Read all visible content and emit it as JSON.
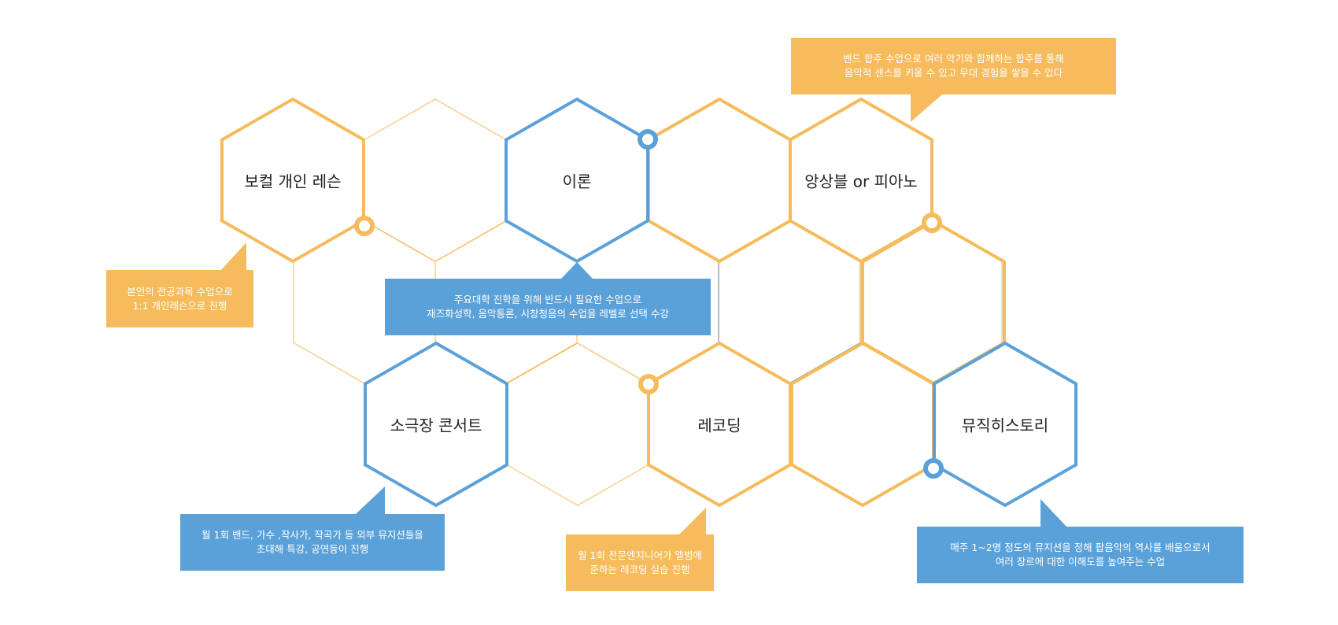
{
  "colors": {
    "orange": "#F5BB5C",
    "blue": "#5BA1D9",
    "background": "#FFFFFF",
    "text": "#222222",
    "callout_text": "#FFFFFF"
  },
  "hexes": {
    "vocal": "보컬 개인 레슨",
    "theory": "이론",
    "ensemble": "앙상블 or 피아노",
    "concert": "소극장 콘서트",
    "recording": "레코딩",
    "history": "뮤직히스토리"
  },
  "callouts": {
    "ensemble": [
      "밴드 합주 수업으로 여러 악기와 함께하는 합주를 통해",
      "음악적 센스를 키울 수 있고 무대 경험을 쌓을 수 있다"
    ],
    "vocal": [
      "본인의 전공과목 수업으로",
      "1:1 개인레슨으로 진행"
    ],
    "theory": [
      "주요대학 진학을 위해 반드시 필요한 수업으로",
      "재즈화성학, 음악통론, 시창청음의 수업을 레벨로 선택 수강"
    ],
    "concert": [
      "월 1회 밴드, 가수 ,작사가, 작곡가 등 외부 뮤지션들을",
      "초대해 특강, 공연등이 진행"
    ],
    "recording": [
      "월 1회 전문엔지니어가 앨범에",
      "준하는 레코딩 실습 진행"
    ],
    "history": [
      "매주 1~2명 정도의 뮤지션을 정해 팝음악의 역사를 배움으로서",
      "여러 장르에 대한 이해도를 높여주는 수업"
    ]
  }
}
